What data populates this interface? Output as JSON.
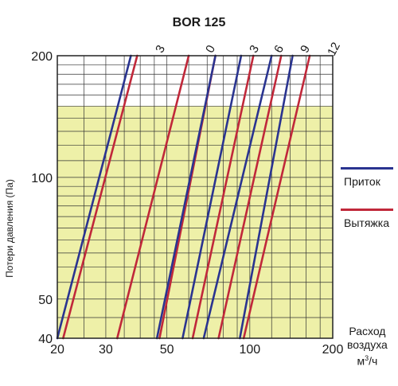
{
  "chart_data": {
    "type": "line",
    "title": "BOR 125",
    "ylabel": "Потери давления (Па)",
    "xlabel": "Расход воздуха м³/ч",
    "x_scale": "log",
    "y_scale": "log",
    "xlim": [
      20,
      200
    ],
    "ylim": [
      40,
      200
    ],
    "x_ticks": [
      20,
      30,
      50,
      100,
      200
    ],
    "y_ticks": [
      40,
      50,
      100,
      200
    ],
    "shaded_region": {
      "y": [
        40,
        150
      ],
      "color": "#eef0a8"
    },
    "grid": true,
    "curve_labels": [
      "3",
      "0",
      "3",
      "6",
      "9",
      "12"
    ],
    "series": [
      {
        "name": "Приток",
        "color": "#2a3490",
        "curves": [
          {
            "points": [
              [
                20,
                40
              ],
              [
                37,
                200
              ]
            ]
          },
          {
            "points": [
              [
                46,
                40
              ],
              [
                75,
                200
              ]
            ]
          },
          {
            "points": [
              [
                57,
                40
              ],
              [
                93,
                200
              ]
            ]
          },
          {
            "points": [
              [
                68,
                40
              ],
              [
                120,
                200
              ]
            ]
          },
          {
            "points": [
              [
                92,
                40
              ],
              [
                143,
                200
              ]
            ]
          }
        ]
      },
      {
        "name": "Вытяжка",
        "color": "#c0283a",
        "curves": [
          {
            "points": [
              [
                21,
                40
              ],
              [
                39,
                200
              ]
            ]
          },
          {
            "points": [
              [
                33,
                40
              ],
              [
                60,
                200
              ]
            ]
          },
          {
            "points": [
              [
                47,
                40
              ],
              [
                75,
                200
              ]
            ]
          },
          {
            "points": [
              [
                62,
                40
              ],
              [
                103,
                200
              ]
            ]
          },
          {
            "points": [
              [
                77,
                40
              ],
              [
                130,
                200
              ]
            ]
          },
          {
            "points": [
              [
                95,
                40
              ],
              [
                165,
                200
              ]
            ]
          }
        ]
      }
    ],
    "legend_position": "right"
  }
}
